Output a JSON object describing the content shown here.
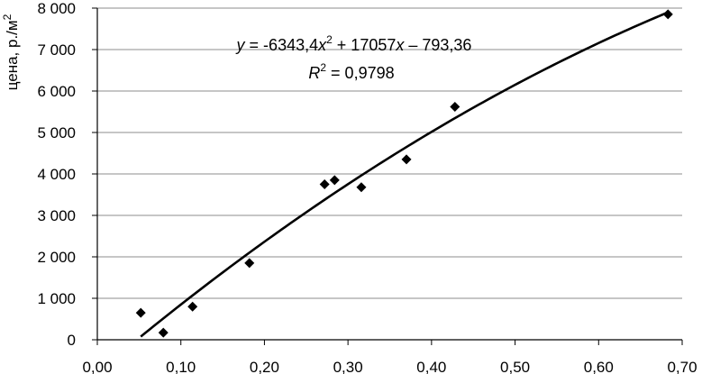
{
  "chart_data": {
    "type": "scatter",
    "ylabel": "цена, р./м",
    "ylabel_sup": "2",
    "xlim": [
      0.0,
      0.7
    ],
    "ylim": [
      0,
      8000
    ],
    "x_ticks": [
      0.0,
      0.1,
      0.2,
      0.3,
      0.4,
      0.5,
      0.6,
      0.7
    ],
    "x_tick_labels": [
      "0,00",
      "0,10",
      "0,20",
      "0,30",
      "0,40",
      "0,50",
      "0,60",
      "0,70"
    ],
    "y_ticks": [
      0,
      1000,
      2000,
      3000,
      4000,
      5000,
      6000,
      7000,
      8000
    ],
    "y_tick_labels": [
      "0",
      "1 000",
      "2 000",
      "3 000",
      "4 000",
      "5 000",
      "6 000",
      "7 000",
      "8 000"
    ],
    "grid": "horizontal",
    "legend": "none",
    "points": [
      {
        "x": 0.052,
        "y": 650
      },
      {
        "x": 0.079,
        "y": 170
      },
      {
        "x": 0.114,
        "y": 800
      },
      {
        "x": 0.182,
        "y": 1850
      },
      {
        "x": 0.272,
        "y": 3750
      },
      {
        "x": 0.284,
        "y": 3850
      },
      {
        "x": 0.316,
        "y": 3680
      },
      {
        "x": 0.37,
        "y": 4350
      },
      {
        "x": 0.428,
        "y": 5620
      },
      {
        "x": 0.683,
        "y": 7850
      }
    ],
    "trendline": {
      "type": "polynomial",
      "coefficients": [
        -6343.4,
        17057,
        -793.36
      ],
      "x_range": [
        0.052,
        0.683
      ],
      "equation": {
        "y": "y",
        "eq1": " = -6343,4",
        "x1": "x",
        "sup": "2",
        "eq2": " + 17057",
        "x2": "x",
        "eq3": " – 793,36"
      },
      "r2": {
        "r": "R",
        "sup": "2",
        "value": " = 0,9798"
      }
    },
    "colors": {
      "marker": "#000000",
      "trendline": "#000000",
      "gridline": "#8c8c8c",
      "axis": "#000000"
    }
  }
}
